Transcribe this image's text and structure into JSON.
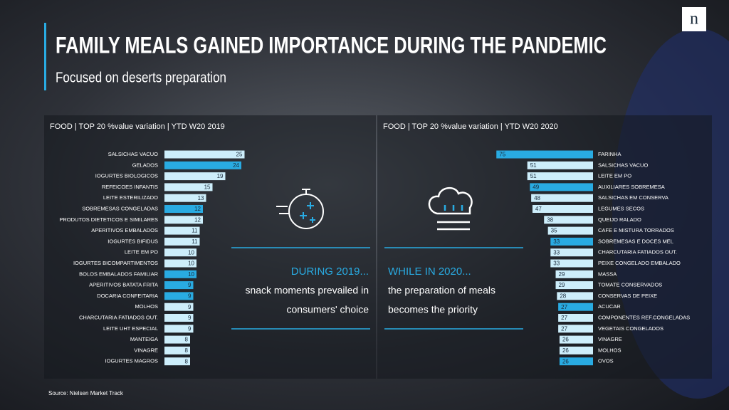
{
  "title": "FAMILY MEALS GAINED IMPORTANCE DURING THE PANDEMIC",
  "subtitle": "Focused on deserts preparation",
  "logo": "n",
  "source": "Source: Nielsen Market Track",
  "callouts": [
    {
      "heading": "DURING 2019...",
      "lines": [
        "snack moments prevailed in",
        "consumers' choice"
      ]
    },
    {
      "heading": "WHILE IN 2020...",
      "lines": [
        "the preparation of meals",
        "becomes the priority"
      ]
    }
  ],
  "chart_data": [
    {
      "type": "bar",
      "orientation": "horizontal",
      "direction": "right",
      "title": "FOOD | TOP 20 %value variation | YTD W20 2019",
      "categories": [
        "SALSICHAS VACUO",
        "GELADOS",
        "IOGURTES BIOLOGICOS",
        "REFEICOES INFANTIS",
        "LEITE ESTERILIZADO",
        "SOBREMESAS CONGELADAS",
        "PRODUTOS DIETETICOS E SIMILARES",
        "APERITIVOS EMBALADOS",
        "IOGURTES BIFIDUS",
        "LEITE EM PO",
        "IOGURTES BICOMPARTIMENTOS",
        "BOLOS EMBALADOS FAMILIAR",
        "APERITIVOS BATATA FRITA",
        "DOCARIA CONFEITARIA",
        "MOLHOS",
        "CHARCUTARIA FATIADOS OUT.",
        "LEITE UHT ESPECIAL",
        "MANTEIGA",
        "VINAGRE",
        "IOGURTES MAGROS"
      ],
      "values": [
        25,
        24,
        19,
        15,
        13,
        12,
        12,
        11,
        11,
        10,
        10,
        10,
        9,
        9,
        9,
        9,
        9,
        8,
        8,
        8
      ],
      "colors": [
        "#cdeefb",
        "#29abe2",
        "#cdeefb",
        "#cdeefb",
        "#cdeefb",
        "#29abe2",
        "#cdeefb",
        "#cdeefb",
        "#cdeefb",
        "#cdeefb",
        "#cdeefb",
        "#29abe2",
        "#29abe2",
        "#29abe2",
        "#cdeefb",
        "#cdeefb",
        "#cdeefb",
        "#cdeefb",
        "#cdeefb",
        "#cdeefb"
      ]
    },
    {
      "type": "bar",
      "orientation": "horizontal",
      "direction": "left",
      "title": "FOOD | TOP 20 %value variation | YTD W20 2020",
      "categories": [
        "FARINHA",
        "SALSICHAS VACUO",
        "LEITE EM PO",
        "AUXILIARES SOBREMESA",
        "SALSICHAS EM CONSERVA",
        "LEGUMES SECOS",
        "QUEIJO RALADO",
        "CAFE E MISTURA TORRADOS",
        "SOBREMESAS E DOCES MEL",
        "CHARCUTARIA FATIADOS OUT.",
        "PEIXE CONGELADO EMBALADO",
        "MASSA",
        "TOMATE CONSERVADOS",
        "CONSERVAS DE PEIXE",
        "ACUCAR",
        "COMPONENTES REF.CONGELADAS",
        "VEGETAIS CONGELADOS",
        "VINAGRE",
        "MOLHOS",
        "OVOS"
      ],
      "values": [
        75,
        51,
        51,
        49,
        48,
        47,
        38,
        35,
        33,
        33,
        33,
        29,
        29,
        28,
        27,
        27,
        27,
        26,
        26,
        26
      ],
      "colors": [
        "#29abe2",
        "#cdeefb",
        "#cdeefb",
        "#29abe2",
        "#cdeefb",
        "#cdeefb",
        "#cdeefb",
        "#cdeefb",
        "#29abe2",
        "#cdeefb",
        "#cdeefb",
        "#cdeefb",
        "#cdeefb",
        "#cdeefb",
        "#29abe2",
        "#cdeefb",
        "#cdeefb",
        "#cdeefb",
        "#cdeefb",
        "#29abe2"
      ]
    }
  ]
}
